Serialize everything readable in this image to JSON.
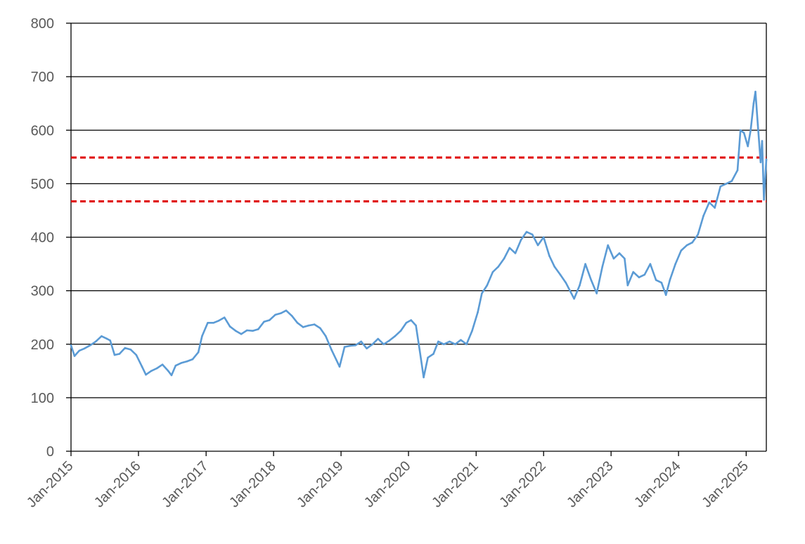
{
  "chart_data": {
    "type": "line",
    "title": "",
    "xlabel": "",
    "ylabel": "",
    "x_range": [
      "2015-01-01",
      "2025-04-20"
    ],
    "ylim": [
      0,
      800
    ],
    "y_ticks": [
      "0",
      "100",
      "200",
      "300",
      "400",
      "500",
      "600",
      "700",
      "800"
    ],
    "x_ticks": [
      {
        "date": "2015-01-01",
        "label": "Jan-2015"
      },
      {
        "date": "2016-01-01",
        "label": "Jan-2016"
      },
      {
        "date": "2017-01-01",
        "label": "Jan-2017"
      },
      {
        "date": "2018-01-01",
        "label": "Jan-2018"
      },
      {
        "date": "2019-01-01",
        "label": "Jan-2019"
      },
      {
        "date": "2020-01-01",
        "label": "Jan-2020"
      },
      {
        "date": "2021-01-01",
        "label": "Jan-2021"
      },
      {
        "date": "2022-01-01",
        "label": "Jan-2022"
      },
      {
        "date": "2023-01-01",
        "label": "Jan-2023"
      },
      {
        "date": "2024-01-01",
        "label": "Jan-2024"
      },
      {
        "date": "2025-01-01",
        "label": "Jan-2025"
      }
    ],
    "grid": true,
    "legend": "none",
    "series": [
      {
        "color": "#5b9bd5",
        "points": [
          [
            "2015-01-01",
            198
          ],
          [
            "2015-01-20",
            178
          ],
          [
            "2015-02-15",
            188
          ],
          [
            "2015-03-15",
            192
          ],
          [
            "2015-04-15",
            198
          ],
          [
            "2015-05-15",
            205
          ],
          [
            "2015-06-15",
            215
          ],
          [
            "2015-07-15",
            210
          ],
          [
            "2015-08-01",
            207
          ],
          [
            "2015-08-25",
            180
          ],
          [
            "2015-09-20",
            182
          ],
          [
            "2015-10-20",
            193
          ],
          [
            "2015-11-20",
            190
          ],
          [
            "2015-12-20",
            180
          ],
          [
            "2016-01-20",
            158
          ],
          [
            "2016-02-10",
            143
          ],
          [
            "2016-03-10",
            150
          ],
          [
            "2016-04-10",
            155
          ],
          [
            "2016-05-10",
            162
          ],
          [
            "2016-06-10",
            150
          ],
          [
            "2016-06-28",
            142
          ],
          [
            "2016-07-20",
            160
          ],
          [
            "2016-08-20",
            165
          ],
          [
            "2016-09-20",
            168
          ],
          [
            "2016-10-20",
            172
          ],
          [
            "2016-11-20",
            185
          ],
          [
            "2016-12-10",
            215
          ],
          [
            "2017-01-10",
            240
          ],
          [
            "2017-02-10",
            240
          ],
          [
            "2017-03-10",
            244
          ],
          [
            "2017-04-10",
            250
          ],
          [
            "2017-05-10",
            233
          ],
          [
            "2017-06-10",
            225
          ],
          [
            "2017-07-10",
            219
          ],
          [
            "2017-08-10",
            226
          ],
          [
            "2017-09-10",
            225
          ],
          [
            "2017-10-10",
            228
          ],
          [
            "2017-11-10",
            242
          ],
          [
            "2017-12-10",
            245
          ],
          [
            "2018-01-10",
            255
          ],
          [
            "2018-02-10",
            258
          ],
          [
            "2018-03-10",
            263
          ],
          [
            "2018-04-10",
            253
          ],
          [
            "2018-05-10",
            240
          ],
          [
            "2018-06-10",
            232
          ],
          [
            "2018-07-10",
            235
          ],
          [
            "2018-08-10",
            237
          ],
          [
            "2018-09-10",
            230
          ],
          [
            "2018-10-10",
            215
          ],
          [
            "2018-11-10",
            190
          ],
          [
            "2018-12-24",
            158
          ],
          [
            "2019-01-20",
            195
          ],
          [
            "2019-02-20",
            197
          ],
          [
            "2019-03-20",
            198
          ],
          [
            "2019-04-20",
            205
          ],
          [
            "2019-05-20",
            192
          ],
          [
            "2019-06-20",
            200
          ],
          [
            "2019-07-20",
            210
          ],
          [
            "2019-08-20",
            200
          ],
          [
            "2019-09-20",
            207
          ],
          [
            "2019-10-20",
            215
          ],
          [
            "2019-11-20",
            225
          ],
          [
            "2019-12-20",
            240
          ],
          [
            "2020-01-15",
            245
          ],
          [
            "2020-02-10",
            235
          ],
          [
            "2020-03-01",
            190
          ],
          [
            "2020-03-23",
            138
          ],
          [
            "2020-04-15",
            175
          ],
          [
            "2020-05-15",
            182
          ],
          [
            "2020-06-10",
            205
          ],
          [
            "2020-07-10",
            200
          ],
          [
            "2020-08-10",
            205
          ],
          [
            "2020-09-10",
            200
          ],
          [
            "2020-10-10",
            208
          ],
          [
            "2020-11-10",
            200
          ],
          [
            "2020-12-10",
            225
          ],
          [
            "2021-01-10",
            260
          ],
          [
            "2021-02-01",
            295
          ],
          [
            "2021-03-01",
            310
          ],
          [
            "2021-04-01",
            335
          ],
          [
            "2021-05-01",
            345
          ],
          [
            "2021-06-01",
            360
          ],
          [
            "2021-07-01",
            380
          ],
          [
            "2021-08-01",
            370
          ],
          [
            "2021-09-01",
            395
          ],
          [
            "2021-10-01",
            410
          ],
          [
            "2021-11-01",
            405
          ],
          [
            "2021-12-01",
            385
          ],
          [
            "2022-01-01",
            400
          ],
          [
            "2022-02-01",
            365
          ],
          [
            "2022-03-01",
            345
          ],
          [
            "2022-04-01",
            330
          ],
          [
            "2022-05-01",
            315
          ],
          [
            "2022-06-15",
            285
          ],
          [
            "2022-07-15",
            310
          ],
          [
            "2022-08-15",
            350
          ],
          [
            "2022-09-15",
            320
          ],
          [
            "2022-10-15",
            295
          ],
          [
            "2022-11-15",
            345
          ],
          [
            "2022-12-15",
            385
          ],
          [
            "2023-01-15",
            360
          ],
          [
            "2023-02-15",
            370
          ],
          [
            "2023-03-15",
            360
          ],
          [
            "2023-04-01",
            310
          ],
          [
            "2023-05-01",
            335
          ],
          [
            "2023-06-01",
            325
          ],
          [
            "2023-07-01",
            330
          ],
          [
            "2023-08-01",
            350
          ],
          [
            "2023-09-01",
            320
          ],
          [
            "2023-10-01",
            315
          ],
          [
            "2023-10-25",
            292
          ],
          [
            "2023-11-15",
            320
          ],
          [
            "2023-12-15",
            350
          ],
          [
            "2024-01-15",
            375
          ],
          [
            "2024-02-15",
            385
          ],
          [
            "2024-03-15",
            390
          ],
          [
            "2024-04-15",
            405
          ],
          [
            "2024-05-15",
            440
          ],
          [
            "2024-06-15",
            465
          ],
          [
            "2024-07-15",
            455
          ],
          [
            "2024-08-15",
            495
          ],
          [
            "2024-09-15",
            500
          ],
          [
            "2024-10-15",
            505
          ],
          [
            "2024-11-15",
            525
          ],
          [
            "2024-12-01",
            600
          ],
          [
            "2024-12-20",
            595
          ],
          [
            "2025-01-10",
            570
          ],
          [
            "2025-01-25",
            600
          ],
          [
            "2025-02-10",
            650
          ],
          [
            "2025-02-20",
            672
          ],
          [
            "2025-03-05",
            610
          ],
          [
            "2025-03-20",
            540
          ],
          [
            "2025-03-28",
            580
          ],
          [
            "2025-04-07",
            470
          ],
          [
            "2025-04-14",
            510
          ],
          [
            "2025-04-20",
            545
          ]
        ]
      }
    ],
    "reference_lines": [
      {
        "y": 549,
        "color": "#e00000",
        "style": "dashed"
      },
      {
        "y": 467,
        "color": "#e00000",
        "style": "dashed"
      }
    ]
  }
}
